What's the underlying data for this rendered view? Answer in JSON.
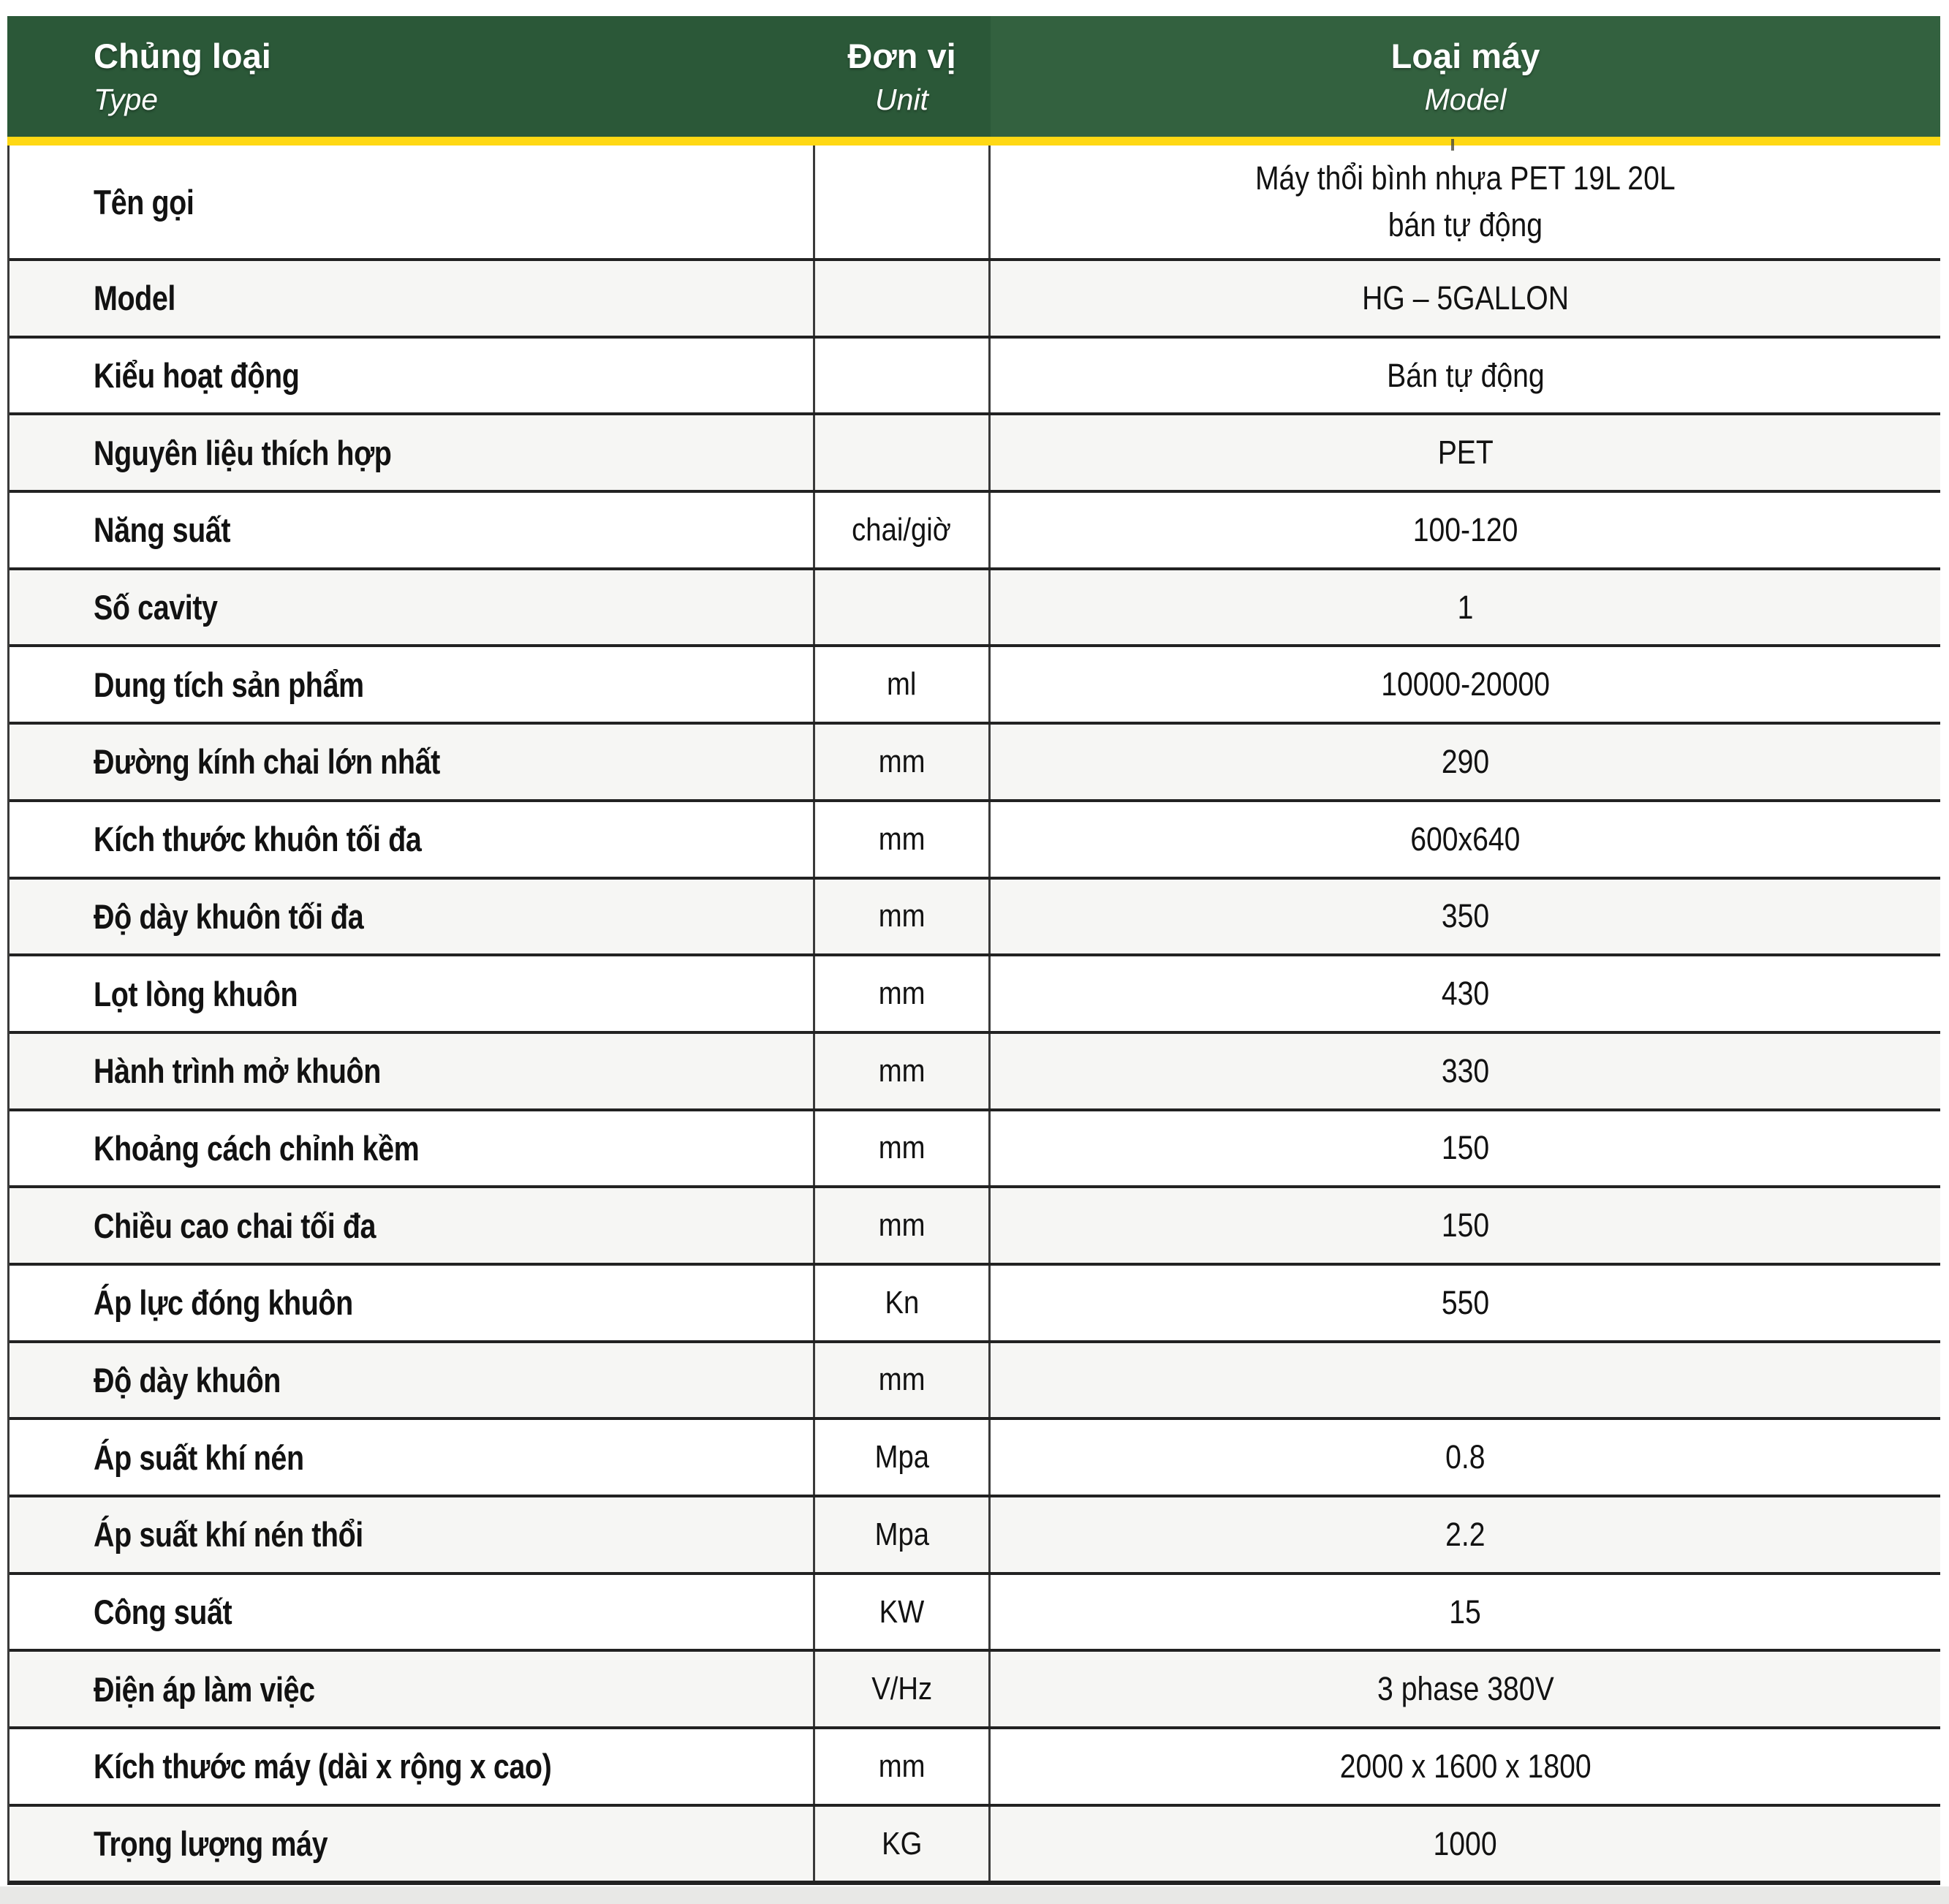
{
  "header": {
    "columns": [
      {
        "title": "Chủng loại",
        "subtitle": "Type"
      },
      {
        "title": "Đơn vị",
        "subtitle": "Unit"
      },
      {
        "title": "Loại máy",
        "subtitle": "Model"
      }
    ]
  },
  "rows": [
    {
      "label": "Tên gọi",
      "unit": "",
      "value_lines": [
        "Máy thổi bình nhựa PET 19L 20L",
        "bán tự động"
      ]
    },
    {
      "label": "Model",
      "unit": "",
      "value": "HG – 5GALLON"
    },
    {
      "label": "Kiểu hoạt động",
      "unit": "",
      "value": "Bán tự động"
    },
    {
      "label": "Nguyên liệu thích hợp",
      "unit": "",
      "value": "PET"
    },
    {
      "label": "Năng suất",
      "unit": "chai/giờ",
      "value": "100-120"
    },
    {
      "label": "Số cavity",
      "unit": "",
      "value": "1"
    },
    {
      "label": "Dung tích sản phẩm",
      "unit": "ml",
      "value": "10000-20000"
    },
    {
      "label": "Đường kính chai lớn nhất",
      "unit": "mm",
      "value": "290"
    },
    {
      "label": "Kích thước khuôn tối đa",
      "unit": "mm",
      "value": "600x640"
    },
    {
      "label": "Độ dày khuôn tối đa",
      "unit": "mm",
      "value": "350"
    },
    {
      "label": "Lọt lòng khuôn",
      "unit": "mm",
      "value": "430"
    },
    {
      "label": "Hành trình mở khuôn",
      "unit": "mm",
      "value": "330"
    },
    {
      "label": "Khoảng cách chỉnh kềm",
      "unit": "mm",
      "value": "150"
    },
    {
      "label": "Chiều cao chai tối đa",
      "unit": "mm",
      "value": "150"
    },
    {
      "label": "Áp lực đóng khuôn",
      "unit": "Kn",
      "value": "550"
    },
    {
      "label": "Độ dày khuôn",
      "unit": "mm",
      "value": ""
    },
    {
      "label": "Áp suất khí nén",
      "unit": "Mpa",
      "value": "0.8"
    },
    {
      "label": "Áp suất khí nén thổi",
      "unit": "Mpa",
      "value": "2.2"
    },
    {
      "label": "Công suất",
      "unit": "KW",
      "value": "15"
    },
    {
      "label": "Điện áp làm việc",
      "unit": "V/Hz",
      "value": "3 phase 380V"
    },
    {
      "label": "Kích thước máy (dài x rộng x cao)",
      "unit": "mm",
      "value": "2000 x 1600 x 1800"
    },
    {
      "label": "Trọng lượng máy",
      "unit": "KG",
      "value": "1000"
    }
  ],
  "colors": {
    "header_green_dark": "#2b5838",
    "header_green_light": "#33613f",
    "accent_yellow": "#ffd814",
    "row_border": "#222222",
    "zebra_row": "#f6f6f4",
    "bottom_band": "#e8e8e6"
  }
}
